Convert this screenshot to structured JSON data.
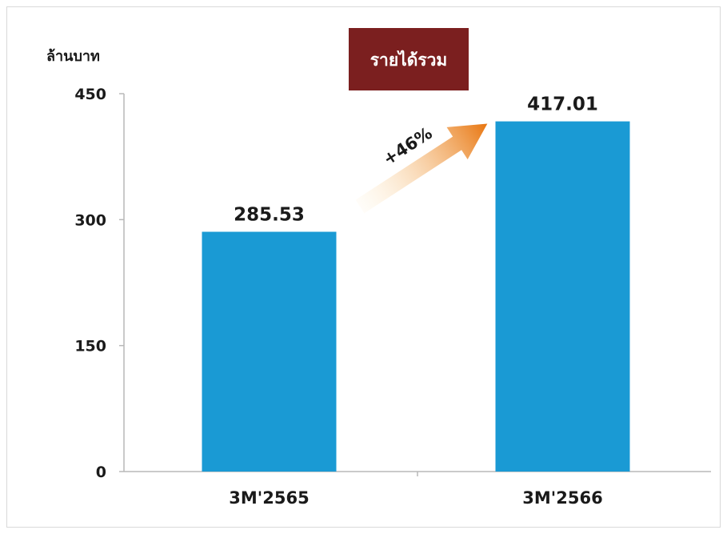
{
  "chart_data": {
    "type": "bar",
    "title": "รายได้รวม",
    "ylabel": "ล้านบาท",
    "categories": [
      "3M'2565",
      "3M'2566"
    ],
    "values": [
      285.53,
      417.01
    ],
    "value_labels": [
      "285.53",
      "417.01"
    ],
    "ylim": [
      0,
      450
    ],
    "yticks": [
      0,
      150,
      300,
      450
    ],
    "grid": false,
    "annotation": "+46%"
  },
  "colors": {
    "bar": "#1a9ad4",
    "title_bg": "#7b1f1f",
    "arrow_start": "#fde9c0",
    "arrow_end": "#e8750f",
    "axis": "#b8b8b8"
  }
}
